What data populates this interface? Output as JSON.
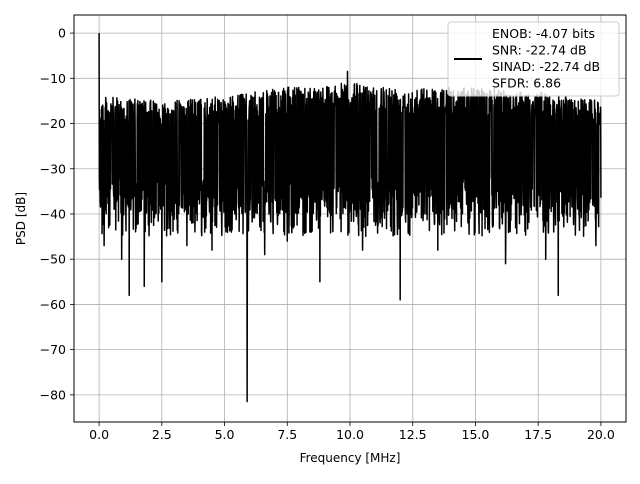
{
  "chart_data": {
    "type": "line",
    "title": "",
    "xlabel": "Frequency [MHz]",
    "ylabel": "PSD [dB]",
    "xlim": [
      -1.0,
      21.0
    ],
    "ylim": [
      -86.0,
      4.0
    ],
    "xticks": [
      0.0,
      2.5,
      5.0,
      7.5,
      10.0,
      12.5,
      15.0,
      17.5,
      20.0
    ],
    "xtick_labels": [
      "0.0",
      "2.5",
      "5.0",
      "7.5",
      "10.0",
      "12.5",
      "15.0",
      "17.5",
      "20.0"
    ],
    "yticks": [
      0,
      -10,
      -20,
      -30,
      -40,
      -50,
      -60,
      -70,
      -80
    ],
    "ytick_labels": [
      "0",
      "−10",
      "−20",
      "−30",
      "−40",
      "−50",
      "−60",
      "−70",
      "−80"
    ],
    "grid": true,
    "legend_position": "top-right",
    "legend_lines": [
      "ENOB: -4.07 bits",
      "SNR: -22.74 dB",
      "SINAD: -22.74 dB",
      "SFDR: 6.86"
    ],
    "series": [
      {
        "color": "#000000",
        "x_range": [
          0.0,
          20.0
        ],
        "noise_floor_envelope": {
          "x": [
            0.0,
            2.5,
            5.0,
            7.5,
            10.0,
            12.5,
            15.0,
            17.5,
            20.0
          ],
          "upper_db": [
            -14,
            -15,
            -14,
            -12,
            -11,
            -12,
            -12,
            -13,
            -15
          ],
          "lower_db": [
            -40,
            -40,
            -40,
            -40,
            -40,
            -40,
            -40,
            -40,
            -40
          ]
        },
        "peaks": [
          {
            "x": 0.0,
            "y": 0.0
          },
          {
            "x": 9.9,
            "y": -8.5
          }
        ],
        "dips": [
          {
            "x": 0.2,
            "y": -47
          },
          {
            "x": 0.9,
            "y": -50
          },
          {
            "x": 1.2,
            "y": -58
          },
          {
            "x": 1.8,
            "y": -56
          },
          {
            "x": 2.5,
            "y": -55
          },
          {
            "x": 3.5,
            "y": -47
          },
          {
            "x": 4.5,
            "y": -48
          },
          {
            "x": 5.9,
            "y": -81.5
          },
          {
            "x": 6.6,
            "y": -49
          },
          {
            "x": 7.5,
            "y": -46
          },
          {
            "x": 8.8,
            "y": -55
          },
          {
            "x": 10.5,
            "y": -48
          },
          {
            "x": 12.0,
            "y": -59
          },
          {
            "x": 13.5,
            "y": -48
          },
          {
            "x": 16.2,
            "y": -51
          },
          {
            "x": 17.8,
            "y": -50
          },
          {
            "x": 18.3,
            "y": -58
          },
          {
            "x": 19.8,
            "y": -47
          }
        ]
      }
    ]
  }
}
